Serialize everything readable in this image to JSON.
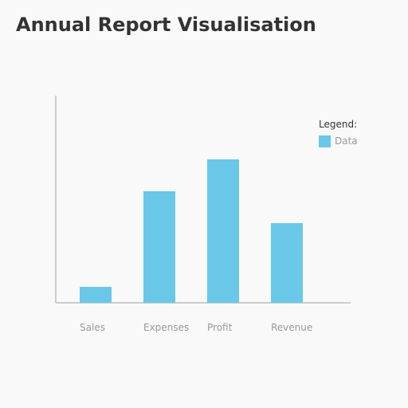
{
  "title": "Annual Report Visualisation",
  "legend": {
    "title": "Legend:",
    "entries": [
      {
        "label": "Data",
        "color": "#69c8e8"
      }
    ]
  },
  "colors": {
    "bar": "#69c8e8",
    "axis": "#cccccc",
    "background": "#f9f9f9"
  },
  "chart_data": {
    "type": "bar",
    "title": "Annual Report Visualisation",
    "categories": [
      "Sales",
      "Expenses",
      "Profit",
      "Revenue"
    ],
    "values": [
      20,
      140,
      180,
      100
    ],
    "ylim": [
      0,
      260
    ],
    "xlabel": "",
    "ylabel": "",
    "grid": false,
    "legend_position": "top-right"
  }
}
